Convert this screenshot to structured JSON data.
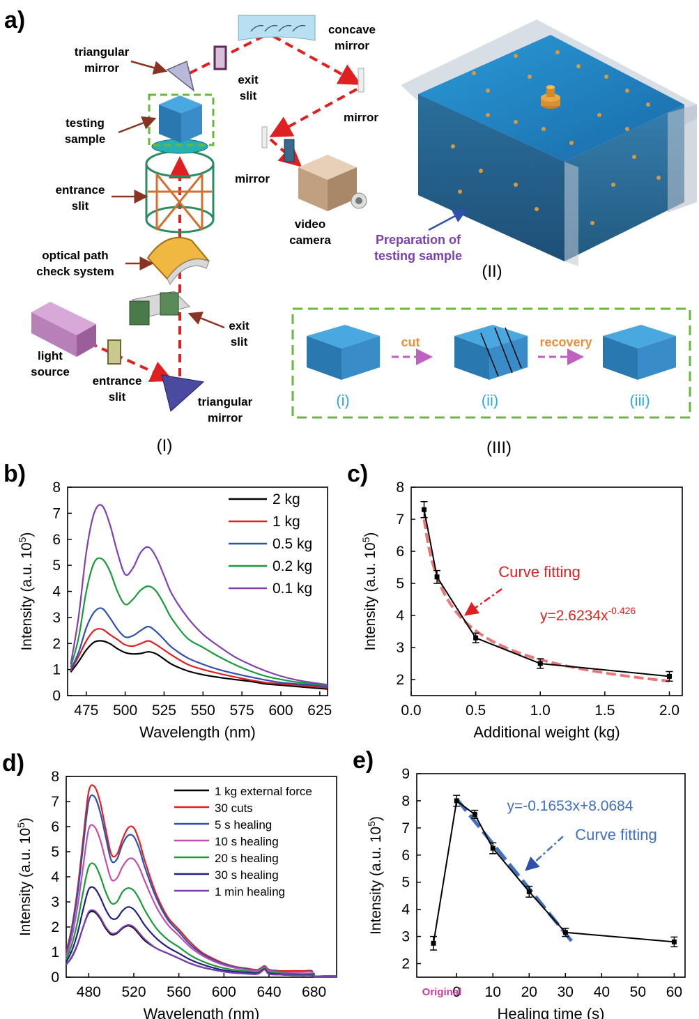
{
  "panel_a": {
    "label": "a)",
    "schematic_I": {
      "caption": "(I)",
      "labels": {
        "triangular_mirror_top": [
          "triangular",
          "mirror"
        ],
        "exit_slit_top": [
          "exit",
          "slit"
        ],
        "concave_mirror": [
          "concave",
          "mirror"
        ],
        "mirror_right": "mirror",
        "mirror_left": "mirror",
        "video_camera": [
          "video",
          "camera"
        ],
        "testing_sample": [
          "testing",
          "sample"
        ],
        "entrance_slit_top": [
          "entrance",
          "slit"
        ],
        "optical_path_check": [
          "optical path",
          "check system"
        ],
        "exit_slit_bottom": [
          "exit",
          "slit"
        ],
        "light_source": [
          "light",
          "source"
        ],
        "entrance_slit_bottom": [
          "entrance",
          "slit"
        ],
        "triangular_mirror_bottom": [
          "triangular",
          "mirror"
        ]
      }
    },
    "schematic_II": {
      "caption": "(II)",
      "label": [
        "Preparation of",
        "testing sample"
      ]
    },
    "schematic_III": {
      "caption": "(III)",
      "steps": [
        "(i)",
        "(ii)",
        "(iii)"
      ],
      "arrows": [
        "cut",
        "recovery"
      ]
    }
  },
  "chart_data": [
    {
      "panel": "b)",
      "type": "line",
      "xlabel": "Wavelength (nm)",
      "ylabel": "Intensity (a.u. 10^5)",
      "xlim": [
        463,
        630
      ],
      "ylim": [
        0,
        8
      ],
      "xticks": [
        475,
        500,
        525,
        550,
        575,
        600,
        625
      ],
      "yticks": [
        0,
        1,
        2,
        3,
        4,
        5,
        6,
        7,
        8
      ],
      "legend_position": "top-right",
      "x": [
        465,
        470,
        475,
        480,
        485,
        490,
        495,
        500,
        505,
        510,
        515,
        520,
        525,
        530,
        540,
        550,
        560,
        570,
        580,
        590,
        600,
        610,
        620,
        630
      ],
      "series": [
        {
          "name": "2 kg",
          "color": "#000000",
          "values": [
            0.9,
            1.3,
            1.75,
            2.05,
            2.1,
            2.0,
            1.8,
            1.65,
            1.6,
            1.62,
            1.68,
            1.6,
            1.4,
            1.2,
            0.95,
            0.8,
            0.7,
            0.62,
            0.55,
            0.45,
            0.4,
            0.35,
            0.3,
            0.25
          ]
        },
        {
          "name": "1 kg",
          "color": "#e02020",
          "values": [
            0.95,
            1.5,
            2.1,
            2.5,
            2.55,
            2.35,
            2.15,
            1.95,
            1.9,
            2.0,
            2.1,
            1.95,
            1.75,
            1.55,
            1.2,
            1.0,
            0.85,
            0.72,
            0.6,
            0.5,
            0.45,
            0.4,
            0.35,
            0.3
          ]
        },
        {
          "name": "0.5 kg",
          "color": "#3050b0",
          "values": [
            1.0,
            1.65,
            2.6,
            3.2,
            3.35,
            3.0,
            2.55,
            2.25,
            2.3,
            2.5,
            2.65,
            2.45,
            2.15,
            1.85,
            1.45,
            1.2,
            1.0,
            0.85,
            0.72,
            0.6,
            0.5,
            0.45,
            0.4,
            0.35
          ]
        },
        {
          "name": "0.2 kg",
          "color": "#1a9a3a",
          "values": [
            1.1,
            2.2,
            4.0,
            5.1,
            5.25,
            4.8,
            4.0,
            3.5,
            3.7,
            4.05,
            4.2,
            4.0,
            3.5,
            2.95,
            2.2,
            1.85,
            1.5,
            1.2,
            0.95,
            0.75,
            0.62,
            0.52,
            0.45,
            0.4
          ]
        },
        {
          "name": "0.1 kg",
          "color": "#8040b0",
          "values": [
            1.2,
            3.0,
            5.5,
            7.0,
            7.3,
            6.6,
            5.5,
            4.65,
            4.9,
            5.5,
            5.7,
            5.3,
            4.6,
            3.9,
            3.0,
            2.35,
            1.9,
            1.5,
            1.2,
            0.95,
            0.75,
            0.6,
            0.5,
            0.42
          ]
        }
      ]
    },
    {
      "panel": "c)",
      "type": "line",
      "xlabel": "Additional weight (kg)",
      "ylabel": "Intensity (a.u. 10^5)",
      "xlim": [
        0.0,
        2.1
      ],
      "ylim": [
        1.5,
        8
      ],
      "xticks": [
        0.0,
        0.5,
        1.0,
        1.5,
        2.0
      ],
      "yticks": [
        2,
        3,
        4,
        5,
        6,
        7,
        8
      ],
      "x": [
        0.1,
        0.2,
        0.5,
        1.0,
        2.0
      ],
      "series": [
        {
          "values": [
            7.3,
            5.2,
            3.3,
            2.5,
            2.1
          ],
          "errors": [
            0.25,
            0.2,
            0.15,
            0.15,
            0.15
          ],
          "color": "#000000"
        }
      ],
      "fit": {
        "equation": "y=2.6234x",
        "exponent": "-0.426",
        "coef": 2.6234,
        "power": -0.426,
        "color": "#e87878",
        "x_range": [
          0.1,
          2.0
        ]
      },
      "annotations": [
        {
          "text": "Curve fitting",
          "color": "#e02020"
        }
      ]
    },
    {
      "panel": "d)",
      "type": "line",
      "xlabel": "Wavelength (nm)",
      "ylabel": "Intensity (a.u. 10^5)",
      "xlim": [
        460,
        700
      ],
      "ylim": [
        0,
        8
      ],
      "xticks": [
        480,
        520,
        560,
        600,
        640,
        680
      ],
      "yticks": [
        0,
        1,
        2,
        3,
        4,
        5,
        6,
        7,
        8
      ],
      "legend_position": "top-right",
      "x": [
        460,
        465,
        470,
        475,
        480,
        485,
        490,
        495,
        500,
        505,
        510,
        515,
        520,
        525,
        530,
        540,
        550,
        560,
        570,
        580,
        590,
        600,
        610,
        620,
        630,
        636,
        640,
        650,
        660,
        670,
        678,
        680,
        690,
        700
      ],
      "series": [
        {
          "name": "1 kg external force",
          "color": "#000000",
          "values": [
            0.5,
            0.8,
            1.3,
            2.0,
            2.55,
            2.6,
            2.35,
            1.95,
            1.7,
            1.75,
            1.95,
            2.05,
            1.95,
            1.7,
            1.45,
            1.15,
            0.95,
            0.75,
            0.55,
            0.4,
            0.3,
            0.22,
            0.17,
            0.14,
            0.13,
            0.3,
            0.13,
            0.1,
            0.08,
            0.07,
            0.07,
            0.02,
            0.02,
            0.02
          ]
        },
        {
          "name": "30 cuts",
          "color": "#e02020",
          "values": [
            1.0,
            2.0,
            3.5,
            5.5,
            7.4,
            7.6,
            7.0,
            5.9,
            4.9,
            4.9,
            5.5,
            5.95,
            5.95,
            5.4,
            4.6,
            3.3,
            2.4,
            1.9,
            1.4,
            1.0,
            0.75,
            0.55,
            0.42,
            0.35,
            0.3,
            0.45,
            0.3,
            0.25,
            0.25,
            0.25,
            0.25,
            0.05,
            0.05,
            0.05
          ]
        },
        {
          "name": "5 s healing",
          "color": "#3050b0",
          "values": [
            0.9,
            1.9,
            3.3,
            5.2,
            7.0,
            7.2,
            6.6,
            5.6,
            4.65,
            4.7,
            5.3,
            5.65,
            5.6,
            5.1,
            4.35,
            3.15,
            2.3,
            1.8,
            1.3,
            0.95,
            0.7,
            0.52,
            0.4,
            0.33,
            0.28,
            0.42,
            0.28,
            0.22,
            0.22,
            0.22,
            0.22,
            0.05,
            0.05,
            0.05
          ]
        },
        {
          "name": "10 s healing",
          "color": "#c050b0",
          "values": [
            0.8,
            1.6,
            2.8,
            4.4,
            5.9,
            6.0,
            5.5,
            4.65,
            3.9,
            3.95,
            4.4,
            4.7,
            4.7,
            4.35,
            3.8,
            2.8,
            2.1,
            1.65,
            1.2,
            0.88,
            0.65,
            0.48,
            0.37,
            0.3,
            0.26,
            0.4,
            0.26,
            0.2,
            0.2,
            0.2,
            0.2,
            0.04,
            0.04,
            0.04
          ]
        },
        {
          "name": "20 s healing",
          "color": "#1a9a3a",
          "values": [
            0.7,
            1.3,
            2.2,
            3.4,
            4.4,
            4.5,
            4.05,
            3.4,
            2.95,
            3.0,
            3.4,
            3.55,
            3.45,
            3.1,
            2.65,
            1.95,
            1.5,
            1.2,
            0.88,
            0.65,
            0.48,
            0.36,
            0.28,
            0.24,
            0.2,
            0.35,
            0.2,
            0.16,
            0.14,
            0.13,
            0.13,
            0.03,
            0.03,
            0.03
          ]
        },
        {
          "name": "30 s healing",
          "color": "#202080",
          "values": [
            0.6,
            1.05,
            1.75,
            2.7,
            3.5,
            3.55,
            3.2,
            2.7,
            2.35,
            2.35,
            2.65,
            2.8,
            2.7,
            2.4,
            2.05,
            1.55,
            1.2,
            0.95,
            0.7,
            0.52,
            0.38,
            0.28,
            0.22,
            0.18,
            0.16,
            0.32,
            0.16,
            0.12,
            0.1,
            0.09,
            0.09,
            0.02,
            0.02,
            0.02
          ]
        },
        {
          "name": "1 min healing",
          "color": "#7a3fb0",
          "values": [
            0.5,
            0.82,
            1.32,
            2.0,
            2.6,
            2.65,
            2.4,
            2.0,
            1.75,
            1.78,
            1.98,
            2.08,
            2.0,
            1.75,
            1.5,
            1.15,
            0.95,
            0.75,
            0.55,
            0.4,
            0.3,
            0.22,
            0.17,
            0.14,
            0.13,
            0.3,
            0.13,
            0.1,
            0.08,
            0.07,
            0.07,
            0.02,
            0.02,
            0.02
          ]
        }
      ]
    },
    {
      "panel": "e)",
      "type": "line",
      "xlabel": "Healing time (s)",
      "ylabel": "Intensity (a.u. 10^5)",
      "xlim": [
        -11,
        63
      ],
      "ylim": [
        1.5,
        9
      ],
      "xticks": [
        0,
        10,
        20,
        30,
        40,
        50,
        60
      ],
      "extra_tick": "Original",
      "yticks": [
        2,
        3,
        4,
        5,
        6,
        7,
        8,
        9
      ],
      "points": [
        {
          "label": "Original",
          "x": null,
          "y": 2.75,
          "err": 0.25
        },
        {
          "x": 0,
          "y": 8.0,
          "err": 0.2
        },
        {
          "x": 5,
          "y": 7.5,
          "err": 0.15
        },
        {
          "x": 10,
          "y": 6.25,
          "err": 0.2
        },
        {
          "x": 20,
          "y": 4.65,
          "err": 0.2
        },
        {
          "x": 30,
          "y": 3.15,
          "err": 0.15
        },
        {
          "x": 60,
          "y": 2.8,
          "err": 0.18
        }
      ],
      "fit": {
        "equation": "y=-0.1653x+8.0684",
        "slope": -0.1653,
        "intercept": 8.0684,
        "color": "#4070c0",
        "x_range": [
          0,
          32
        ]
      },
      "annotations": [
        {
          "text": "Curve fitting",
          "color": "#4070c0"
        }
      ]
    }
  ]
}
